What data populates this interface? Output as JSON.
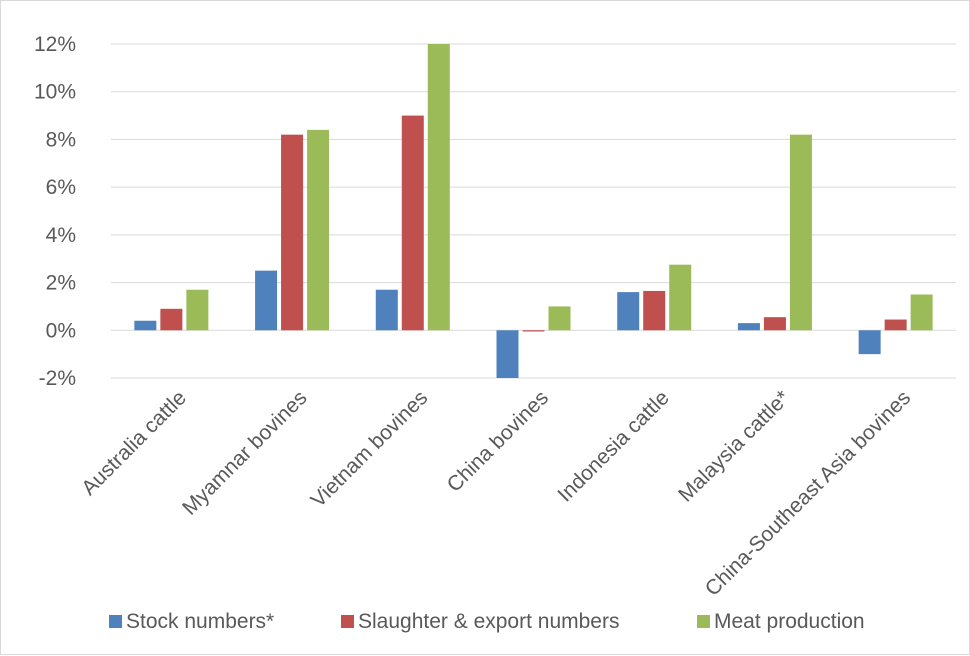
{
  "chart_data": {
    "type": "bar",
    "title": "",
    "xlabel": "",
    "ylabel": "",
    "ylim": [
      -2,
      12
    ],
    "ytick_step": 2,
    "y_tick_labels": [
      "-2%",
      "0%",
      "2%",
      "4%",
      "6%",
      "8%",
      "10%",
      "12%"
    ],
    "grid": true,
    "legend_position": "bottom",
    "categories": [
      "Australia cattle",
      "Myamnar bovines",
      "Vietnam bovines",
      "China bovines",
      "Indonesia cattle",
      "Malaysia cattle*",
      "China-Southeast Asia bovines"
    ],
    "series": [
      {
        "name": "Stock numbers*",
        "color": "#4f81bd",
        "values": [
          0.4,
          2.5,
          1.7,
          -2.0,
          1.6,
          0.3,
          -1.0
        ]
      },
      {
        "name": "Slaughter & export numbers",
        "color": "#c0504d",
        "values": [
          0.9,
          8.2,
          9.0,
          -0.05,
          1.65,
          0.55,
          0.45
        ]
      },
      {
        "name": "Meat production",
        "color": "#9bbb59",
        "values": [
          1.7,
          8.4,
          12.0,
          1.0,
          2.75,
          8.2,
          1.5
        ]
      }
    ]
  }
}
